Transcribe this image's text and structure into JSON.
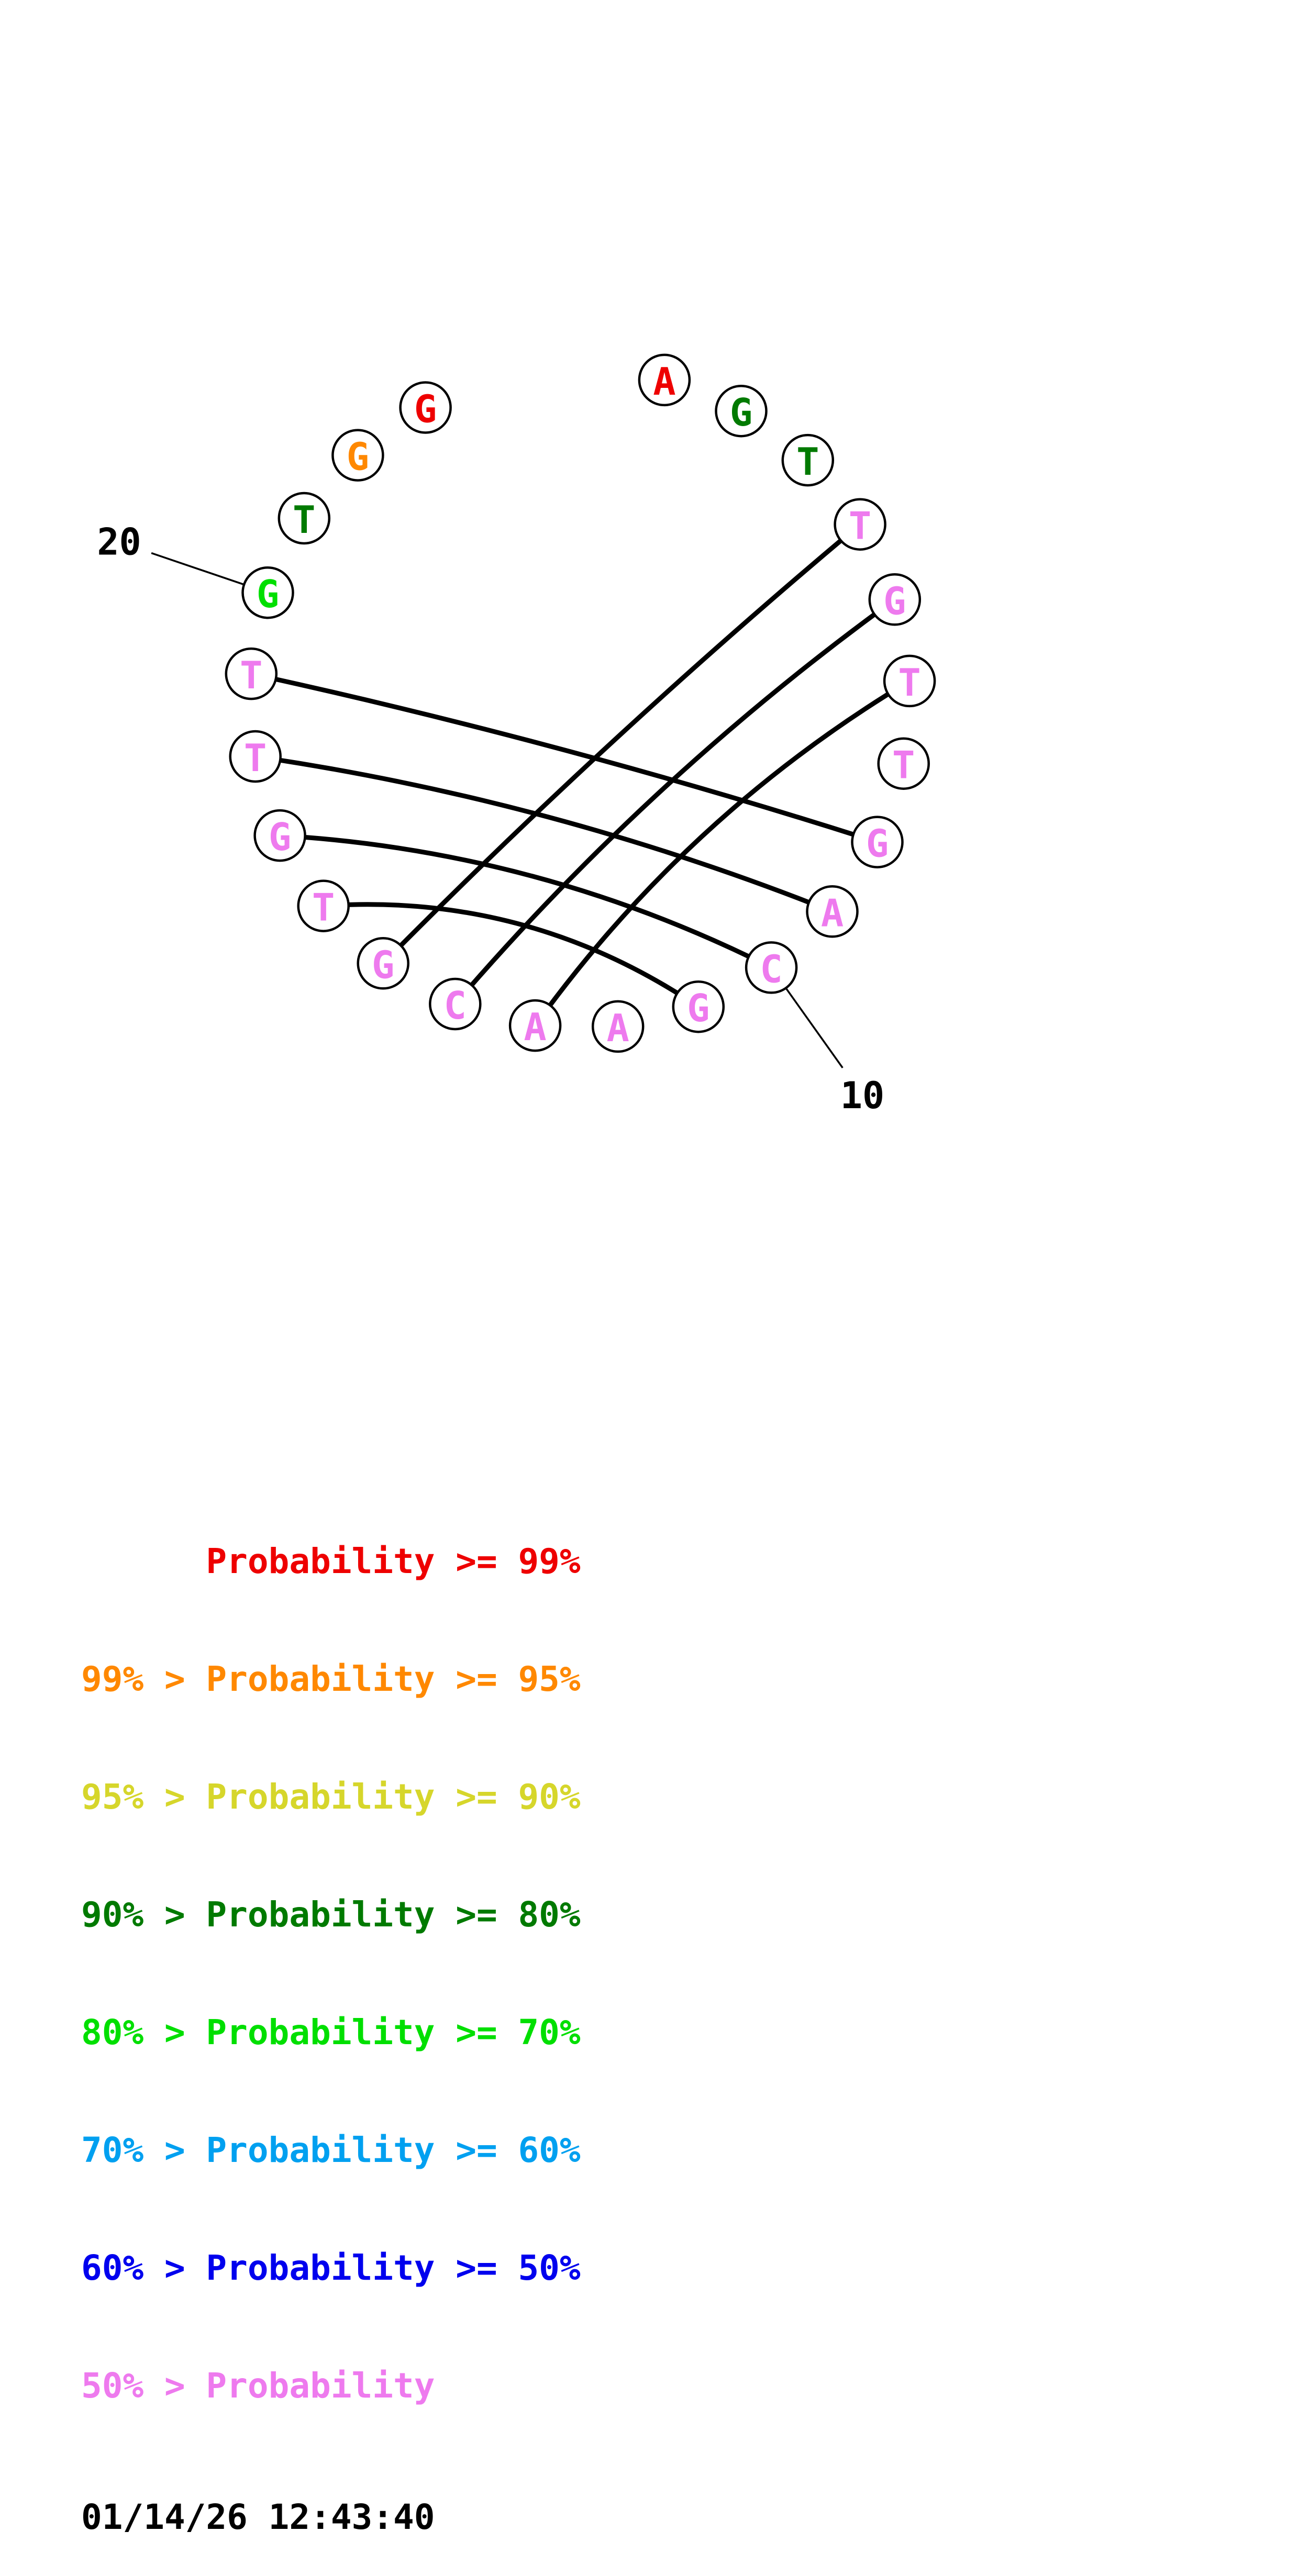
{
  "plot": {
    "sequence": [
      {
        "index": 1,
        "base": "A",
        "band": "p99"
      },
      {
        "index": 2,
        "base": "G",
        "band": "p80"
      },
      {
        "index": 3,
        "base": "T",
        "band": "p80"
      },
      {
        "index": 4,
        "base": "T",
        "band": "lt50"
      },
      {
        "index": 5,
        "base": "G",
        "band": "lt50"
      },
      {
        "index": 6,
        "base": "T",
        "band": "lt50"
      },
      {
        "index": 7,
        "base": "T",
        "band": "lt50"
      },
      {
        "index": 8,
        "base": "G",
        "band": "lt50"
      },
      {
        "index": 9,
        "base": "A",
        "band": "lt50"
      },
      {
        "index": 10,
        "base": "C",
        "band": "lt50"
      },
      {
        "index": 11,
        "base": "G",
        "band": "lt50"
      },
      {
        "index": 12,
        "base": "A",
        "band": "lt50"
      },
      {
        "index": 13,
        "base": "A",
        "band": "lt50"
      },
      {
        "index": 14,
        "base": "C",
        "band": "lt50"
      },
      {
        "index": 15,
        "base": "G",
        "band": "lt50"
      },
      {
        "index": 16,
        "base": "T",
        "band": "lt50"
      },
      {
        "index": 17,
        "base": "G",
        "band": "lt50"
      },
      {
        "index": 18,
        "base": "T",
        "band": "lt50"
      },
      {
        "index": 19,
        "base": "T",
        "band": "lt50"
      },
      {
        "index": 20,
        "base": "G",
        "band": "p70"
      },
      {
        "index": 21,
        "base": "T",
        "band": "p80"
      },
      {
        "index": 22,
        "base": "G",
        "band": "p95"
      },
      {
        "index": 23,
        "base": "G",
        "band": "p99"
      }
    ],
    "pairs": [
      [
        4,
        15
      ],
      [
        5,
        14
      ],
      [
        6,
        13
      ],
      [
        8,
        19
      ],
      [
        9,
        18
      ],
      [
        10,
        17
      ],
      [
        11,
        16
      ]
    ],
    "index_labels": [
      {
        "text": "20",
        "index": 20
      },
      {
        "text": "10",
        "index": 10
      }
    ]
  },
  "colors": {
    "p99": "#EE0000",
    "p95": "#FF8800",
    "p90": "#D6D62B",
    "p80": "#007A00",
    "p70": "#00DF00",
    "p60": "#00A0F0",
    "p50": "#0000EE",
    "lt50": "#EE7AEE",
    "black": "#000000"
  },
  "legend": {
    "rows": [
      {
        "text": "      Probability >= 99%",
        "band": "p99"
      },
      {
        "text": "99% > Probability >= 95%",
        "band": "p95"
      },
      {
        "text": "95% > Probability >= 90%",
        "band": "p90"
      },
      {
        "text": "90% > Probability >= 80%",
        "band": "p80"
      },
      {
        "text": "80% > Probability >= 70%",
        "band": "p70"
      },
      {
        "text": "70% > Probability >= 60%",
        "band": "p60"
      },
      {
        "text": "60% > Probability >= 50%",
        "band": "p50"
      },
      {
        "text": "50% > Probability",
        "band": "lt50"
      }
    ],
    "timestamp": "01/14/26 12:43:40"
  }
}
